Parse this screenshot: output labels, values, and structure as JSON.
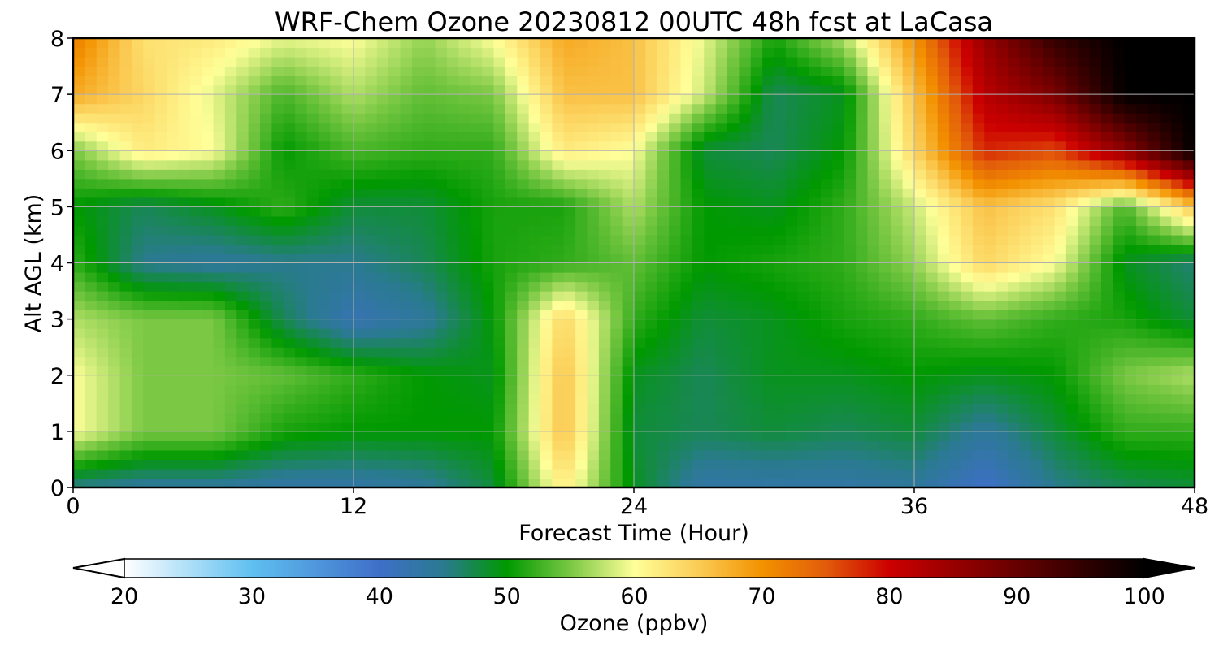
{
  "chart_data": {
    "type": "heatmap",
    "title": "WRF-Chem Ozone  20230812 00UTC 48h fcst at LaCasa",
    "xlabel": "Forecast Time (Hour)",
    "ylabel": "Alt AGL (km)",
    "xlim": [
      0,
      48
    ],
    "ylim": [
      0,
      8
    ],
    "x_ticks": [
      "0",
      "12",
      "24",
      "36",
      "48"
    ],
    "y_ticks": [
      "0",
      "1",
      "2",
      "3",
      "4",
      "5",
      "6",
      "7",
      "8"
    ],
    "grid": true,
    "x": [
      0,
      3,
      6,
      9,
      12,
      15,
      18,
      21,
      24,
      27,
      30,
      33,
      36,
      39,
      42,
      45,
      48
    ],
    "y": [
      0,
      1,
      2,
      3,
      4,
      5,
      6,
      7,
      8
    ],
    "z": [
      [
        45,
        44,
        44,
        43,
        43,
        44,
        48,
        62,
        49,
        43,
        43,
        43,
        44,
        40,
        45,
        47,
        48
      ],
      [
        60,
        55,
        55,
        51,
        50,
        50,
        50,
        66,
        48,
        47,
        48,
        47,
        48,
        44,
        48,
        52,
        52
      ],
      [
        60,
        55,
        55,
        54,
        52,
        50,
        49,
        66,
        49,
        47,
        49,
        49,
        50,
        49,
        50,
        55,
        57
      ],
      [
        57,
        55,
        55,
        47,
        42,
        44,
        50,
        64,
        52,
        48,
        49,
        51,
        52,
        54,
        52,
        51,
        48
      ],
      [
        52,
        45,
        44,
        45,
        45,
        47,
        51,
        52,
        54,
        50,
        51,
        52,
        56,
        64,
        60,
        49,
        46
      ],
      [
        50,
        47,
        49,
        52,
        48,
        48,
        51,
        51,
        57,
        50,
        49,
        52,
        58,
        66,
        63,
        53,
        66
      ],
      [
        55,
        62,
        60,
        50,
        53,
        52,
        52,
        62,
        60,
        48,
        47,
        50,
        64,
        78,
        76,
        86,
        100
      ],
      [
        68,
        64,
        59,
        53,
        57,
        54,
        55,
        66,
        66,
        58,
        47,
        49,
        66,
        82,
        88,
        100,
        100
      ],
      [
        72,
        63,
        62,
        59,
        60,
        56,
        60,
        68,
        66,
        59,
        51,
        57,
        70,
        85,
        95,
        100,
        100
      ]
    ],
    "colorbar": {
      "label": "Ozone  (ppbv)",
      "min": 20,
      "max": 100,
      "ticks": [
        "20",
        "30",
        "40",
        "50",
        "60",
        "70",
        "80",
        "90",
        "100"
      ],
      "extend": "both",
      "color_stops": [
        {
          "v": 20,
          "c": "#ffffff"
        },
        {
          "v": 30,
          "c": "#5fc0f0"
        },
        {
          "v": 40,
          "c": "#3f6fc8"
        },
        {
          "v": 45,
          "c": "#2a7a90"
        },
        {
          "v": 50,
          "c": "#009900"
        },
        {
          "v": 55,
          "c": "#7ac843"
        },
        {
          "v": 60,
          "c": "#ffff99"
        },
        {
          "v": 65,
          "c": "#fbcc55"
        },
        {
          "v": 70,
          "c": "#f39200"
        },
        {
          "v": 75,
          "c": "#e25c0a"
        },
        {
          "v": 80,
          "c": "#cc0000"
        },
        {
          "v": 90,
          "c": "#660000"
        },
        {
          "v": 100,
          "c": "#000000"
        }
      ]
    }
  }
}
